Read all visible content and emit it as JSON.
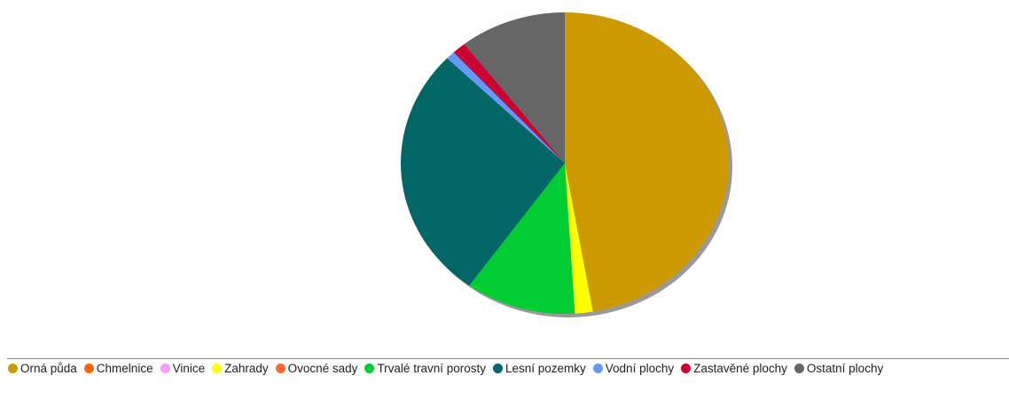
{
  "chart_data": {
    "type": "pie",
    "title": "",
    "legend_position": "bottom",
    "categories": [
      "Orná půda",
      "Chmelnice",
      "Vinice",
      "Zahrady",
      "Ovocné sady",
      "Trvalé travní porosty",
      "Lesní pozemky",
      "Vodní plochy",
      "Zastavěné plochy",
      "Ostatní plochy"
    ],
    "values": [
      48.2,
      0,
      0,
      1.8,
      0,
      11.1,
      27.9,
      0.9,
      1.4,
      10.7
    ],
    "colors": [
      "#cc9900",
      "#ff6600",
      "#ff99ff",
      "#ffff00",
      "#ff6633",
      "#00cc33",
      "#006666",
      "#6699ff",
      "#cc0033",
      "#666666"
    ],
    "shadow_color": "#999999"
  }
}
